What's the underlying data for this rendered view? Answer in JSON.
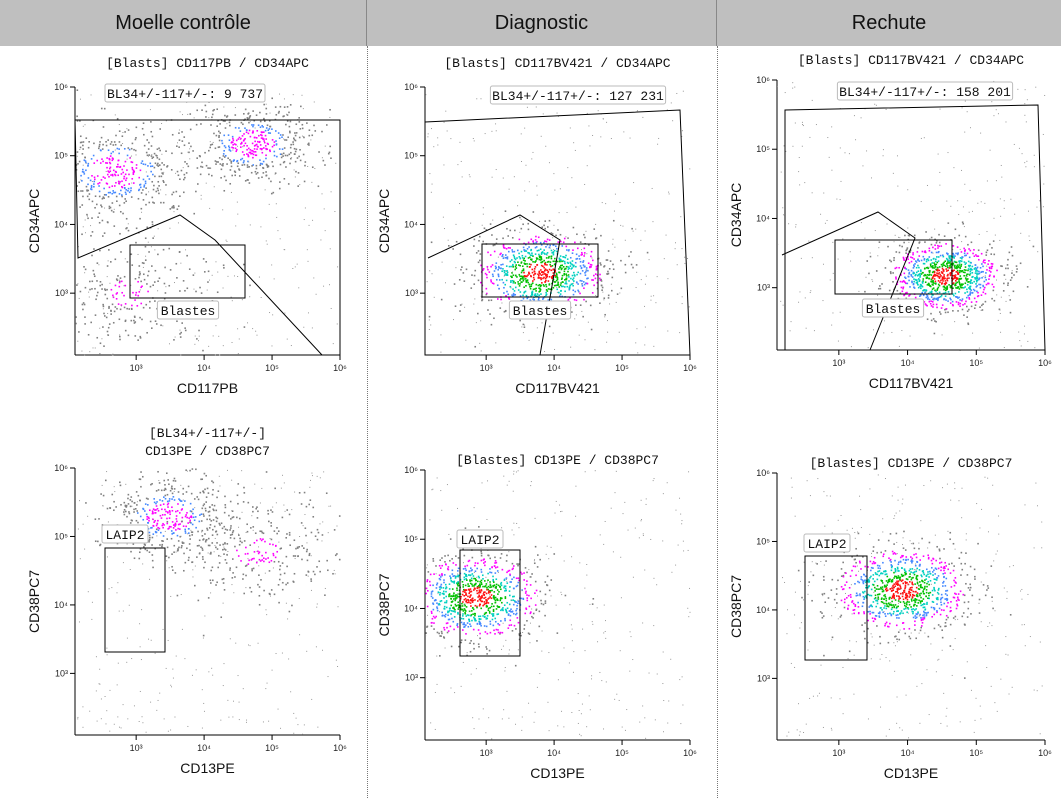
{
  "columns": [
    "Moelle contrôle",
    "Diagnostic",
    "Rechute"
  ],
  "colors": {
    "header_bg": "#bfbfbf",
    "events_gray": "#808080",
    "density_scale": [
      "#ff00ff",
      "#4488ff",
      "#00d0c0",
      "#00c000",
      "#ff1010"
    ],
    "gate": "#000000"
  },
  "chart_data": [
    {
      "type": "scatter",
      "panel": "Moelle contrôle - top",
      "title": "[Blasts] CD117PB / CD34APC",
      "xlabel": "CD117PB",
      "ylabel": "CD34APC",
      "x_scale": "log",
      "y_scale": "log",
      "x_ticks": [
        "10³",
        "10⁴",
        "10⁵",
        "10⁶"
      ],
      "y_ticks": [
        "10³",
        "10⁴",
        "10⁵",
        "10⁶"
      ],
      "gates": [
        {
          "name": "BL34+/-117+/-",
          "label": "BL34+/-117+/-: 9 737",
          "shape": "polygon"
        },
        {
          "name": "Blastes",
          "label": "Blastes",
          "shape": "rectangle"
        }
      ],
      "populations": [
        {
          "x": 500,
          "y": 60000,
          "spread": 0.35,
          "density": "high"
        },
        {
          "x": 50000,
          "y": 150000,
          "spread": 0.3,
          "density": "high"
        },
        {
          "x": 800,
          "y": 1000,
          "spread": 0.4,
          "density": "medium"
        }
      ]
    },
    {
      "type": "scatter",
      "panel": "Diagnostic - top",
      "title": "[Blasts] CD117BV421 / CD34APC",
      "xlabel": "CD117BV421",
      "ylabel": "CD34APC",
      "x_scale": "log",
      "y_scale": "log",
      "x_ticks": [
        "10³",
        "10⁴",
        "10⁵",
        "10⁶"
      ],
      "y_ticks": [
        "10³",
        "10⁴",
        "10⁵",
        "10⁶"
      ],
      "gates": [
        {
          "name": "BL34+/-117+/-",
          "label": "BL34+/-117+/-: 127 231",
          "shape": "polygon"
        },
        {
          "name": "Blastes",
          "label": "Blastes",
          "shape": "rectangle"
        }
      ],
      "populations": [
        {
          "x": 6000,
          "y": 2000,
          "spread": 0.3,
          "density": "very-high"
        }
      ]
    },
    {
      "type": "scatter",
      "panel": "Rechute - top",
      "title": "[Blasts] CD117BV421 / CD34APC",
      "xlabel": "CD117BV421",
      "ylabel": "CD34APC",
      "x_scale": "log",
      "y_scale": "log",
      "x_ticks": [
        "10³",
        "10⁴",
        "10⁵",
        "10⁶"
      ],
      "y_ticks": [
        "10³",
        "10⁴",
        "10⁵",
        "10⁶"
      ],
      "gates": [
        {
          "name": "BL34+/-117+/-",
          "label": "BL34+/-117+/-: 158 201",
          "shape": "polygon"
        },
        {
          "name": "Blastes",
          "label": "Blastes",
          "shape": "rectangle"
        }
      ],
      "populations": [
        {
          "x": 35000,
          "y": 1500,
          "spread": 0.25,
          "density": "very-high"
        }
      ]
    },
    {
      "type": "scatter",
      "panel": "Moelle contrôle - bottom",
      "title": "[BL34+/-117+/-]",
      "subtitle": "CD13PE / CD38PC7",
      "xlabel": "CD13PE",
      "ylabel": "CD38PC7",
      "x_scale": "log",
      "y_scale": "log",
      "x_ticks": [
        "10³",
        "10⁴",
        "10⁵",
        "10⁶"
      ],
      "y_ticks": [
        "10³",
        "10⁴",
        "10⁵",
        "10⁶"
      ],
      "gates": [
        {
          "name": "LAIP2",
          "label": "LAIP2",
          "shape": "rectangle"
        }
      ],
      "populations": [
        {
          "x": 3000,
          "y": 200000,
          "spread": 0.3,
          "density": "high"
        },
        {
          "x": 60000,
          "y": 60000,
          "spread": 0.4,
          "density": "medium"
        }
      ]
    },
    {
      "type": "scatter",
      "panel": "Diagnostic - bottom",
      "title": "[Blastes] CD13PE / CD38PC7",
      "xlabel": "CD13PE",
      "ylabel": "CD38PC7",
      "x_scale": "log",
      "y_scale": "log",
      "x_ticks": [
        "10³",
        "10⁴",
        "10⁵",
        "10⁶"
      ],
      "y_ticks": [
        "10³",
        "10⁴",
        "10⁵",
        "10⁶"
      ],
      "gates": [
        {
          "name": "LAIP2",
          "label": "LAIP2",
          "shape": "rectangle"
        }
      ],
      "populations": [
        {
          "x": 700,
          "y": 15000,
          "spread": 0.3,
          "density": "very-high"
        }
      ]
    },
    {
      "type": "scatter",
      "panel": "Rechute - bottom",
      "title": "[Blastes] CD13PE / CD38PC7",
      "xlabel": "CD13PE",
      "ylabel": "CD38PC7",
      "x_scale": "log",
      "y_scale": "log",
      "x_ticks": [
        "10³",
        "10⁴",
        "10⁵",
        "10⁶"
      ],
      "y_ticks": [
        "10³",
        "10⁴",
        "10⁵",
        "10⁶"
      ],
      "gates": [
        {
          "name": "LAIP2",
          "label": "LAIP2",
          "shape": "rectangle"
        }
      ],
      "populations": [
        {
          "x": 8000,
          "y": 20000,
          "spread": 0.3,
          "density": "very-high"
        }
      ]
    }
  ]
}
